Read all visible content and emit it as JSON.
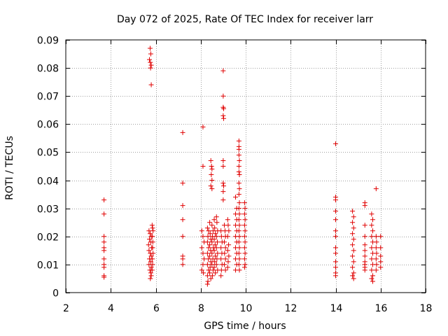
{
  "chart_data": {
    "type": "scatter",
    "title": "Day 072 of 2025, Rate Of TEC Index for receiver larr",
    "xlabel": "GPS time / hours",
    "ylabel": "ROTI / TECUs",
    "xlim": [
      2,
      18
    ],
    "ylim": [
      0,
      0.09
    ],
    "xticks": [
      2,
      4,
      6,
      8,
      10,
      12,
      14,
      16,
      18
    ],
    "xtick_labels": [
      "2",
      "4",
      "6",
      "8",
      "10",
      "12",
      "14",
      "16",
      "18"
    ],
    "yticks": [
      0,
      0.01,
      0.02,
      0.03,
      0.04,
      0.05,
      0.06,
      0.07,
      0.08,
      0.09
    ],
    "ytick_labels": [
      "0",
      "0.01",
      "0.02",
      "0.03",
      "0.04",
      "0.05",
      "0.06",
      "0.07",
      "0.08",
      "0.09"
    ],
    "grid": true,
    "marker": "plus",
    "color": "#e00000",
    "points": [
      [
        3.7,
        0.033
      ],
      [
        3.7,
        0.028
      ],
      [
        3.7,
        0.02
      ],
      [
        3.7,
        0.018
      ],
      [
        3.7,
        0.016
      ],
      [
        3.7,
        0.015
      ],
      [
        3.7,
        0.012
      ],
      [
        3.7,
        0.01
      ],
      [
        3.7,
        0.009
      ],
      [
        3.7,
        0.006
      ],
      [
        3.7,
        0.0055
      ],
      [
        5.75,
        0.087
      ],
      [
        5.78,
        0.085
      ],
      [
        5.72,
        0.083
      ],
      [
        5.76,
        0.082
      ],
      [
        5.8,
        0.081
      ],
      [
        5.77,
        0.08
      ],
      [
        5.8,
        0.074
      ],
      [
        5.7,
        0.022
      ],
      [
        5.75,
        0.021
      ],
      [
        5.8,
        0.02
      ],
      [
        5.72,
        0.019
      ],
      [
        5.78,
        0.018
      ],
      [
        5.68,
        0.017
      ],
      [
        5.82,
        0.016
      ],
      [
        5.7,
        0.015
      ],
      [
        5.76,
        0.014
      ],
      [
        5.8,
        0.013
      ],
      [
        5.72,
        0.012
      ],
      [
        5.78,
        0.011
      ],
      [
        5.7,
        0.01
      ],
      [
        5.8,
        0.009
      ],
      [
        5.74,
        0.008
      ],
      [
        5.78,
        0.007
      ],
      [
        5.8,
        0.006
      ],
      [
        5.76,
        0.005
      ],
      [
        5.84,
        0.024
      ],
      [
        5.86,
        0.023
      ],
      [
        5.88,
        0.022
      ],
      [
        5.85,
        0.02
      ],
      [
        5.87,
        0.018
      ],
      [
        5.86,
        0.016
      ],
      [
        5.88,
        0.014
      ],
      [
        5.85,
        0.012
      ],
      [
        5.86,
        0.01
      ],
      [
        5.84,
        0.008
      ],
      [
        7.2,
        0.057
      ],
      [
        7.2,
        0.039
      ],
      [
        7.2,
        0.031
      ],
      [
        7.2,
        0.026
      ],
      [
        7.2,
        0.02
      ],
      [
        7.2,
        0.013
      ],
      [
        7.2,
        0.012
      ],
      [
        7.2,
        0.01
      ],
      [
        8.1,
        0.059
      ],
      [
        8.1,
        0.045
      ],
      [
        8.05,
        0.022
      ],
      [
        8.1,
        0.02
      ],
      [
        8.15,
        0.018
      ],
      [
        8.05,
        0.016
      ],
      [
        8.1,
        0.014
      ],
      [
        8.15,
        0.012
      ],
      [
        8.1,
        0.01
      ],
      [
        8.05,
        0.008
      ],
      [
        8.12,
        0.007
      ],
      [
        8.45,
        0.047
      ],
      [
        8.48,
        0.045
      ],
      [
        8.5,
        0.044
      ],
      [
        8.47,
        0.042
      ],
      [
        8.5,
        0.04
      ],
      [
        8.45,
        0.038
      ],
      [
        8.5,
        0.037
      ],
      [
        8.3,
        0.023
      ],
      [
        8.35,
        0.022
      ],
      [
        8.32,
        0.02
      ],
      [
        8.3,
        0.018
      ],
      [
        8.35,
        0.016
      ],
      [
        8.3,
        0.014
      ],
      [
        8.34,
        0.012
      ],
      [
        8.3,
        0.01
      ],
      [
        8.35,
        0.008
      ],
      [
        8.3,
        0.006
      ],
      [
        8.32,
        0.004
      ],
      [
        8.3,
        0.003
      ],
      [
        8.4,
        0.025
      ],
      [
        8.42,
        0.021
      ],
      [
        8.45,
        0.019
      ],
      [
        8.4,
        0.017
      ],
      [
        8.44,
        0.015
      ],
      [
        8.4,
        0.013
      ],
      [
        8.45,
        0.011
      ],
      [
        8.42,
        0.009
      ],
      [
        8.4,
        0.007
      ],
      [
        8.45,
        0.005
      ],
      [
        8.5,
        0.024
      ],
      [
        8.55,
        0.022
      ],
      [
        8.52,
        0.02
      ],
      [
        8.5,
        0.018
      ],
      [
        8.56,
        0.016
      ],
      [
        8.5,
        0.014
      ],
      [
        8.54,
        0.012
      ],
      [
        8.5,
        0.01
      ],
      [
        8.55,
        0.008
      ],
      [
        8.52,
        0.006
      ],
      [
        8.6,
        0.026
      ],
      [
        8.62,
        0.023
      ],
      [
        8.65,
        0.021
      ],
      [
        8.6,
        0.019
      ],
      [
        8.64,
        0.017
      ],
      [
        8.6,
        0.015
      ],
      [
        8.65,
        0.013
      ],
      [
        8.62,
        0.011
      ],
      [
        8.6,
        0.009
      ],
      [
        8.65,
        0.007
      ],
      [
        8.7,
        0.027
      ],
      [
        8.72,
        0.025
      ],
      [
        8.75,
        0.022
      ],
      [
        8.7,
        0.02
      ],
      [
        8.74,
        0.018
      ],
      [
        8.7,
        0.016
      ],
      [
        8.75,
        0.014
      ],
      [
        8.72,
        0.012
      ],
      [
        8.7,
        0.01
      ],
      [
        8.75,
        0.008
      ],
      [
        8.9,
        0.022
      ],
      [
        8.92,
        0.02
      ],
      [
        8.95,
        0.018
      ],
      [
        8.9,
        0.016
      ],
      [
        8.94,
        0.014
      ],
      [
        8.9,
        0.012
      ],
      [
        8.95,
        0.01
      ],
      [
        8.92,
        0.008
      ],
      [
        8.9,
        0.006
      ],
      [
        9.0,
        0.079
      ],
      [
        9.0,
        0.07
      ],
      [
        9.0,
        0.066
      ],
      [
        9.02,
        0.0655
      ],
      [
        9.0,
        0.063
      ],
      [
        9.02,
        0.062
      ],
      [
        9.0,
        0.047
      ],
      [
        9.0,
        0.045
      ],
      [
        9.0,
        0.039
      ],
      [
        9.02,
        0.038
      ],
      [
        9.0,
        0.036
      ],
      [
        9.0,
        0.033
      ],
      [
        9.05,
        0.024
      ],
      [
        9.08,
        0.022
      ],
      [
        9.1,
        0.02
      ],
      [
        9.05,
        0.018
      ],
      [
        9.1,
        0.016
      ],
      [
        9.06,
        0.014
      ],
      [
        9.1,
        0.012
      ],
      [
        9.05,
        0.01
      ],
      [
        9.1,
        0.008
      ],
      [
        9.2,
        0.026
      ],
      [
        9.22,
        0.024
      ],
      [
        9.25,
        0.022
      ],
      [
        9.2,
        0.02
      ],
      [
        9.24,
        0.017
      ],
      [
        9.2,
        0.015
      ],
      [
        9.25,
        0.013
      ],
      [
        9.22,
        0.011
      ],
      [
        9.2,
        0.009
      ],
      [
        9.55,
        0.034
      ],
      [
        9.6,
        0.03
      ],
      [
        9.55,
        0.028
      ],
      [
        9.6,
        0.026
      ],
      [
        9.55,
        0.024
      ],
      [
        9.6,
        0.022
      ],
      [
        9.55,
        0.02
      ],
      [
        9.6,
        0.018
      ],
      [
        9.55,
        0.016
      ],
      [
        9.6,
        0.014
      ],
      [
        9.55,
        0.012
      ],
      [
        9.6,
        0.01
      ],
      [
        9.55,
        0.008
      ],
      [
        9.7,
        0.054
      ],
      [
        9.7,
        0.052
      ],
      [
        9.7,
        0.051
      ],
      [
        9.7,
        0.049
      ],
      [
        9.72,
        0.047
      ],
      [
        9.7,
        0.045
      ],
      [
        9.7,
        0.043
      ],
      [
        9.72,
        0.042
      ],
      [
        9.7,
        0.039
      ],
      [
        9.72,
        0.037
      ],
      [
        9.7,
        0.035
      ],
      [
        9.72,
        0.032
      ],
      [
        9.7,
        0.03
      ],
      [
        9.72,
        0.028
      ],
      [
        9.7,
        0.026
      ],
      [
        9.72,
        0.024
      ],
      [
        9.7,
        0.022
      ],
      [
        9.72,
        0.02
      ],
      [
        9.7,
        0.018
      ],
      [
        9.72,
        0.016
      ],
      [
        9.7,
        0.014
      ],
      [
        9.72,
        0.012
      ],
      [
        9.7,
        0.01
      ],
      [
        9.72,
        0.008
      ],
      [
        9.95,
        0.032
      ],
      [
        9.97,
        0.03
      ],
      [
        9.95,
        0.028
      ],
      [
        9.97,
        0.026
      ],
      [
        9.95,
        0.024
      ],
      [
        9.97,
        0.022
      ],
      [
        9.95,
        0.02
      ],
      [
        9.97,
        0.018
      ],
      [
        9.95,
        0.016
      ],
      [
        9.97,
        0.014
      ],
      [
        9.95,
        0.012
      ],
      [
        9.97,
        0.01
      ],
      [
        9.95,
        0.009
      ],
      [
        14.0,
        0.053
      ],
      [
        14.0,
        0.034
      ],
      [
        14.0,
        0.033
      ],
      [
        14.0,
        0.029
      ],
      [
        14.0,
        0.026
      ],
      [
        14.0,
        0.022
      ],
      [
        14.0,
        0.02
      ],
      [
        14.0,
        0.016
      ],
      [
        14.0,
        0.014
      ],
      [
        14.0,
        0.011
      ],
      [
        14.0,
        0.009
      ],
      [
        14.0,
        0.007
      ],
      [
        14.0,
        0.006
      ],
      [
        14.75,
        0.029
      ],
      [
        14.8,
        0.027
      ],
      [
        14.75,
        0.025
      ],
      [
        14.8,
        0.023
      ],
      [
        14.75,
        0.021
      ],
      [
        14.8,
        0.019
      ],
      [
        14.75,
        0.017
      ],
      [
        14.8,
        0.015
      ],
      [
        14.75,
        0.013
      ],
      [
        14.8,
        0.011
      ],
      [
        14.75,
        0.009
      ],
      [
        14.8,
        0.007
      ],
      [
        14.75,
        0.006
      ],
      [
        14.8,
        0.005
      ],
      [
        15.3,
        0.032
      ],
      [
        15.3,
        0.031
      ],
      [
        15.3,
        0.024
      ],
      [
        15.3,
        0.02
      ],
      [
        15.3,
        0.017
      ],
      [
        15.3,
        0.015
      ],
      [
        15.3,
        0.013
      ],
      [
        15.3,
        0.011
      ],
      [
        15.3,
        0.01
      ],
      [
        15.3,
        0.009
      ],
      [
        15.3,
        0.008
      ],
      [
        15.6,
        0.028
      ],
      [
        15.65,
        0.026
      ],
      [
        15.6,
        0.024
      ],
      [
        15.65,
        0.022
      ],
      [
        15.6,
        0.02
      ],
      [
        15.65,
        0.018
      ],
      [
        15.6,
        0.016
      ],
      [
        15.65,
        0.014
      ],
      [
        15.6,
        0.012
      ],
      [
        15.65,
        0.01
      ],
      [
        15.6,
        0.008
      ],
      [
        15.65,
        0.006
      ],
      [
        15.6,
        0.005
      ],
      [
        15.65,
        0.004
      ],
      [
        15.8,
        0.037
      ],
      [
        15.8,
        0.02
      ],
      [
        15.82,
        0.018
      ],
      [
        15.8,
        0.016
      ],
      [
        15.82,
        0.014
      ],
      [
        15.8,
        0.012
      ],
      [
        15.82,
        0.01
      ],
      [
        15.8,
        0.008
      ],
      [
        16.0,
        0.02
      ],
      [
        16.0,
        0.016
      ],
      [
        16.0,
        0.013
      ],
      [
        16.0,
        0.011
      ],
      [
        16.0,
        0.009
      ]
    ]
  }
}
